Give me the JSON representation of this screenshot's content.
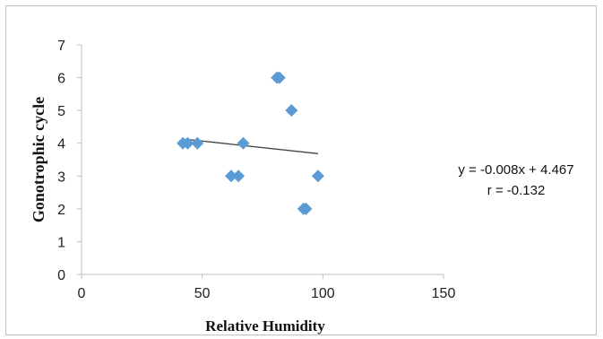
{
  "chart_data": {
    "type": "scatter",
    "xlabel": "Relative Humidity",
    "ylabel": "Gonotrophic cycle",
    "xlim": [
      0,
      150
    ],
    "ylim": [
      0,
      7
    ],
    "x_ticks": [
      "0",
      "50",
      "100",
      "150"
    ],
    "y_ticks": [
      "0",
      "1",
      "2",
      "3",
      "4",
      "5",
      "6",
      "7"
    ],
    "grid": false,
    "legend": "none",
    "marker": "diamond",
    "marker_color": "#5b9bd5",
    "series": [
      {
        "x": [
          42,
          44,
          48,
          62,
          65,
          67,
          81,
          82,
          87,
          92,
          93,
          98
        ],
        "y": [
          4,
          4,
          4,
          3,
          3,
          4,
          6,
          6,
          5,
          2,
          2,
          3
        ]
      }
    ],
    "trendline": {
      "x_start": 43,
      "x_end": 98,
      "slope": -0.008,
      "intercept": 4.467,
      "color": "#404040"
    },
    "annotations": [
      "y = -0.008x + 4.467",
      "r = -0.132"
    ]
  }
}
